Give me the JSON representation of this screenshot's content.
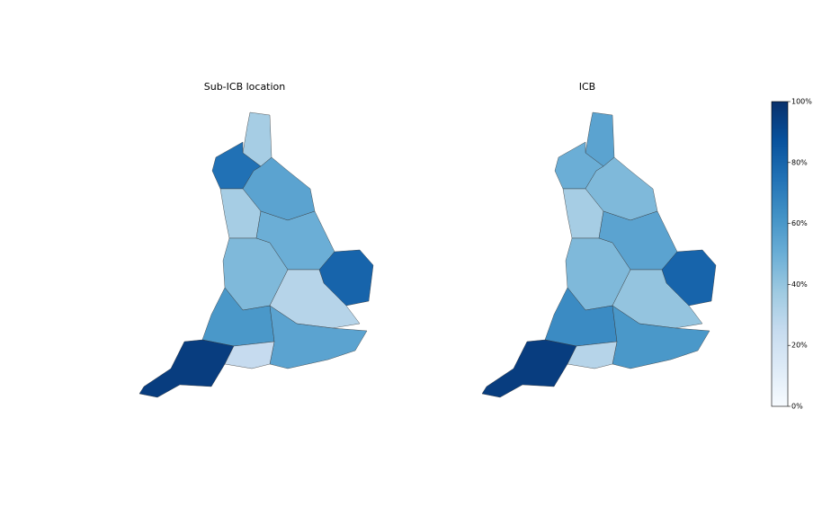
{
  "chart_data": [
    {
      "type": "choropleth",
      "title": "Sub-ICB location",
      "values": [
        35,
        75,
        55,
        35,
        50,
        80,
        45,
        30,
        60,
        55,
        95,
        25
      ]
    },
    {
      "type": "choropleth",
      "title": "ICB",
      "values": [
        55,
        50,
        45,
        35,
        55,
        80,
        45,
        40,
        65,
        60,
        95,
        30
      ]
    }
  ],
  "colorbar": {
    "lim": [
      0,
      100
    ],
    "ticks": [
      {
        "value": 0,
        "label": "0%"
      },
      {
        "value": 20,
        "label": "20%"
      },
      {
        "value": 40,
        "label": "40%"
      },
      {
        "value": 60,
        "label": "60%"
      },
      {
        "value": 80,
        "label": "80%"
      },
      {
        "value": 100,
        "label": "100%"
      }
    ],
    "colormap": [
      "#f7fbff",
      "#deebf7",
      "#c6dbef",
      "#9ecae1",
      "#6baed6",
      "#4292c6",
      "#2171b5",
      "#08519c",
      "#08306b"
    ]
  }
}
